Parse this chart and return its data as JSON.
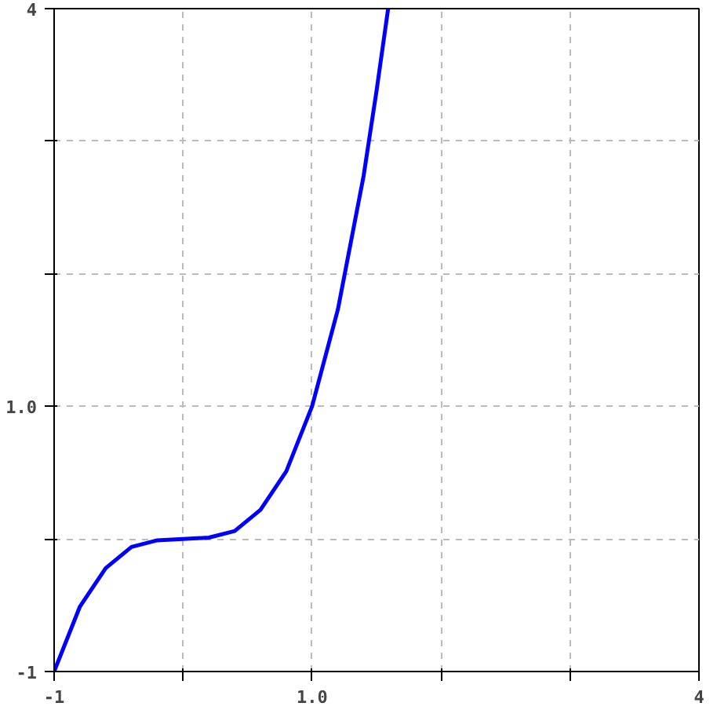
{
  "chart_data": {
    "type": "line",
    "x": [
      -1,
      -0.8,
      -0.6,
      -0.4,
      -0.2,
      0,
      0.2,
      0.4,
      0.6,
      0.8,
      1.0,
      1.2,
      1.4,
      1.5,
      1.59
    ],
    "series": [
      {
        "color": "#0000ff",
        "values": [
          -1,
          -0.51,
          -0.22,
          -0.06,
          -0.01,
          0,
          0.01,
          0.06,
          0.22,
          0.51,
          1,
          1.73,
          2.74,
          3.38,
          4.0
        ]
      }
    ],
    "xlim": [
      -1,
      4
    ],
    "ylim": [
      -1,
      4
    ],
    "xticks": [
      {
        "value": -1,
        "label": "-1"
      },
      {
        "value": 0,
        "label": null
      },
      {
        "value": 1,
        "label": "1.0"
      },
      {
        "value": 2,
        "label": null
      },
      {
        "value": 3,
        "label": null
      },
      {
        "value": 4,
        "label": "4"
      }
    ],
    "yticks": [
      {
        "value": -1,
        "label": "-1"
      },
      {
        "value": 0,
        "label": null
      },
      {
        "value": 1,
        "label": "1.0"
      },
      {
        "value": 2,
        "label": null
      },
      {
        "value": 3,
        "label": null
      },
      {
        "value": 4,
        "label": "4"
      }
    ],
    "grid": true,
    "line_style": "solid",
    "marker": "none"
  }
}
